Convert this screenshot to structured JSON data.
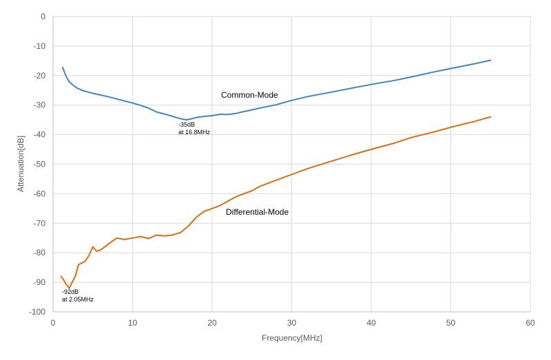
{
  "chart_data": {
    "type": "line",
    "title": "",
    "xlabel": "Frequency[MHz]",
    "ylabel": "Attenuation[dB]",
    "xlim": [
      0,
      60
    ],
    "ylim": [
      -100,
      0
    ],
    "x_ticks": [
      "0",
      "10",
      "20",
      "30",
      "40",
      "50",
      "60"
    ],
    "y_ticks": [
      "0",
      "-10",
      "-20",
      "-30",
      "-40",
      "-50",
      "-60",
      "-70",
      "-80",
      "-90",
      "-100"
    ],
    "grid": true,
    "legend": "none",
    "series": [
      {
        "name": "Common-Mode",
        "color": "#3d85c6",
        "x": [
          1.2,
          1.6,
          2.0,
          2.5,
          3.0,
          3.5,
          4.0,
          5.0,
          6.0,
          7.0,
          8.0,
          9.0,
          10.0,
          11.0,
          12.0,
          13.0,
          14.0,
          15.0,
          16.0,
          16.8,
          17.5,
          18.0,
          19.0,
          20.0,
          21.0,
          22.0,
          23.0,
          24.0,
          25.0,
          26.0,
          28.0,
          30.0,
          32.0,
          35.0,
          38.0,
          40.0,
          43.0,
          45.0,
          48.0,
          50.0,
          53.0,
          55.0
        ],
        "y": [
          -17.2,
          -20,
          -22,
          -23.2,
          -24.2,
          -24.8,
          -25.3,
          -26.0,
          -26.6,
          -27.2,
          -27.9,
          -28.6,
          -29.3,
          -30.1,
          -31.0,
          -32.3,
          -33.0,
          -33.8,
          -34.6,
          -35.0,
          -34.6,
          -34.2,
          -33.8,
          -33.6,
          -33.1,
          -33.2,
          -32.8,
          -32.2,
          -31.6,
          -31.0,
          -29.9,
          -28.4,
          -27.1,
          -25.6,
          -24.0,
          -23.0,
          -21.6,
          -20.5,
          -18.7,
          -17.6,
          -16.0,
          -14.8
        ]
      },
      {
        "name": "Differential-Mode",
        "color": "#e36c09",
        "x": [
          1.0,
          1.3,
          1.6,
          2.05,
          2.4,
          2.8,
          3.2,
          3.6,
          4.0,
          4.5,
          5.0,
          5.5,
          6.0,
          7.0,
          8.0,
          9.0,
          10.0,
          11.0,
          12.0,
          13.0,
          14.0,
          15.0,
          16.0,
          17.0,
          18.0,
          19.0,
          20.0,
          21.0,
          22.0,
          23.0,
          24.0,
          25.0,
          26.0,
          28.0,
          30.0,
          32.0,
          35.0,
          38.0,
          40.0,
          43.0,
          45.0,
          48.0,
          50.0,
          53.0,
          55.0
        ],
        "y": [
          -88,
          -89,
          -90.5,
          -92,
          -90,
          -88,
          -84,
          -83.5,
          -83,
          -81,
          -78,
          -79.5,
          -79,
          -77,
          -75,
          -75.5,
          -75,
          -74.5,
          -75.2,
          -74.0,
          -74.3,
          -74.0,
          -73.2,
          -71,
          -68,
          -66,
          -65,
          -64,
          -62.5,
          -61,
          -60,
          -59,
          -57.5,
          -55.5,
          -53.5,
          -51.5,
          -49,
          -46.5,
          -45,
          -42.8,
          -41,
          -39,
          -37.5,
          -35.5,
          -34
        ]
      }
    ],
    "annotations": {
      "cm_min": {
        "x": 16.8,
        "y": -35,
        "line1": "-35dB",
        "line2": "at 16.8MHz"
      },
      "dm_min": {
        "x": 2.05,
        "y": -92,
        "line1": "-92dB",
        "line2": "at 2.05MHz"
      }
    }
  }
}
